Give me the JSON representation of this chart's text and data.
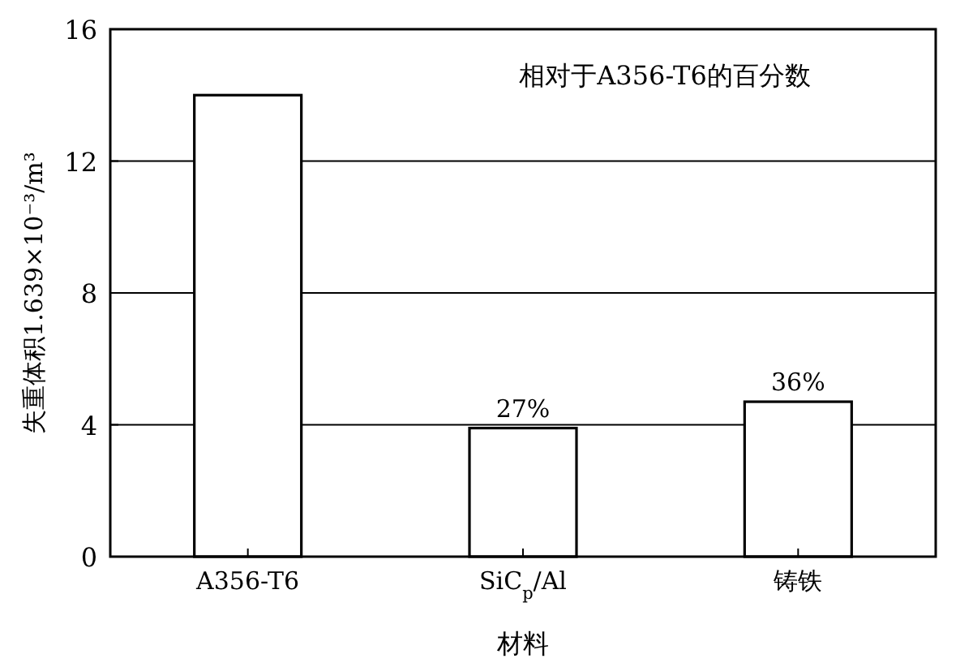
{
  "chart_data": {
    "type": "bar",
    "title": "相对于A356-T6的百分数",
    "xlabel": "材料",
    "ylabel": "失重体积1.639×10⁻³/m³",
    "categories": [
      "A356-T6",
      "SiC$_{p}$/Al",
      "铸铁"
    ],
    "values": [
      14,
      3.9,
      4.7
    ],
    "color": "#ffffff",
    "annotations": [
      {
        "text": "27%",
        "x": "SiC$_{p}$/Al",
        "y": 3.9
      },
      {
        "text": "36%",
        "x": "铸铁",
        "y": 4.7
      }
    ],
    "ylim": [
      0,
      16
    ],
    "yticks": [
      0,
      4,
      8,
      12,
      16
    ],
    "grid": "y"
  }
}
